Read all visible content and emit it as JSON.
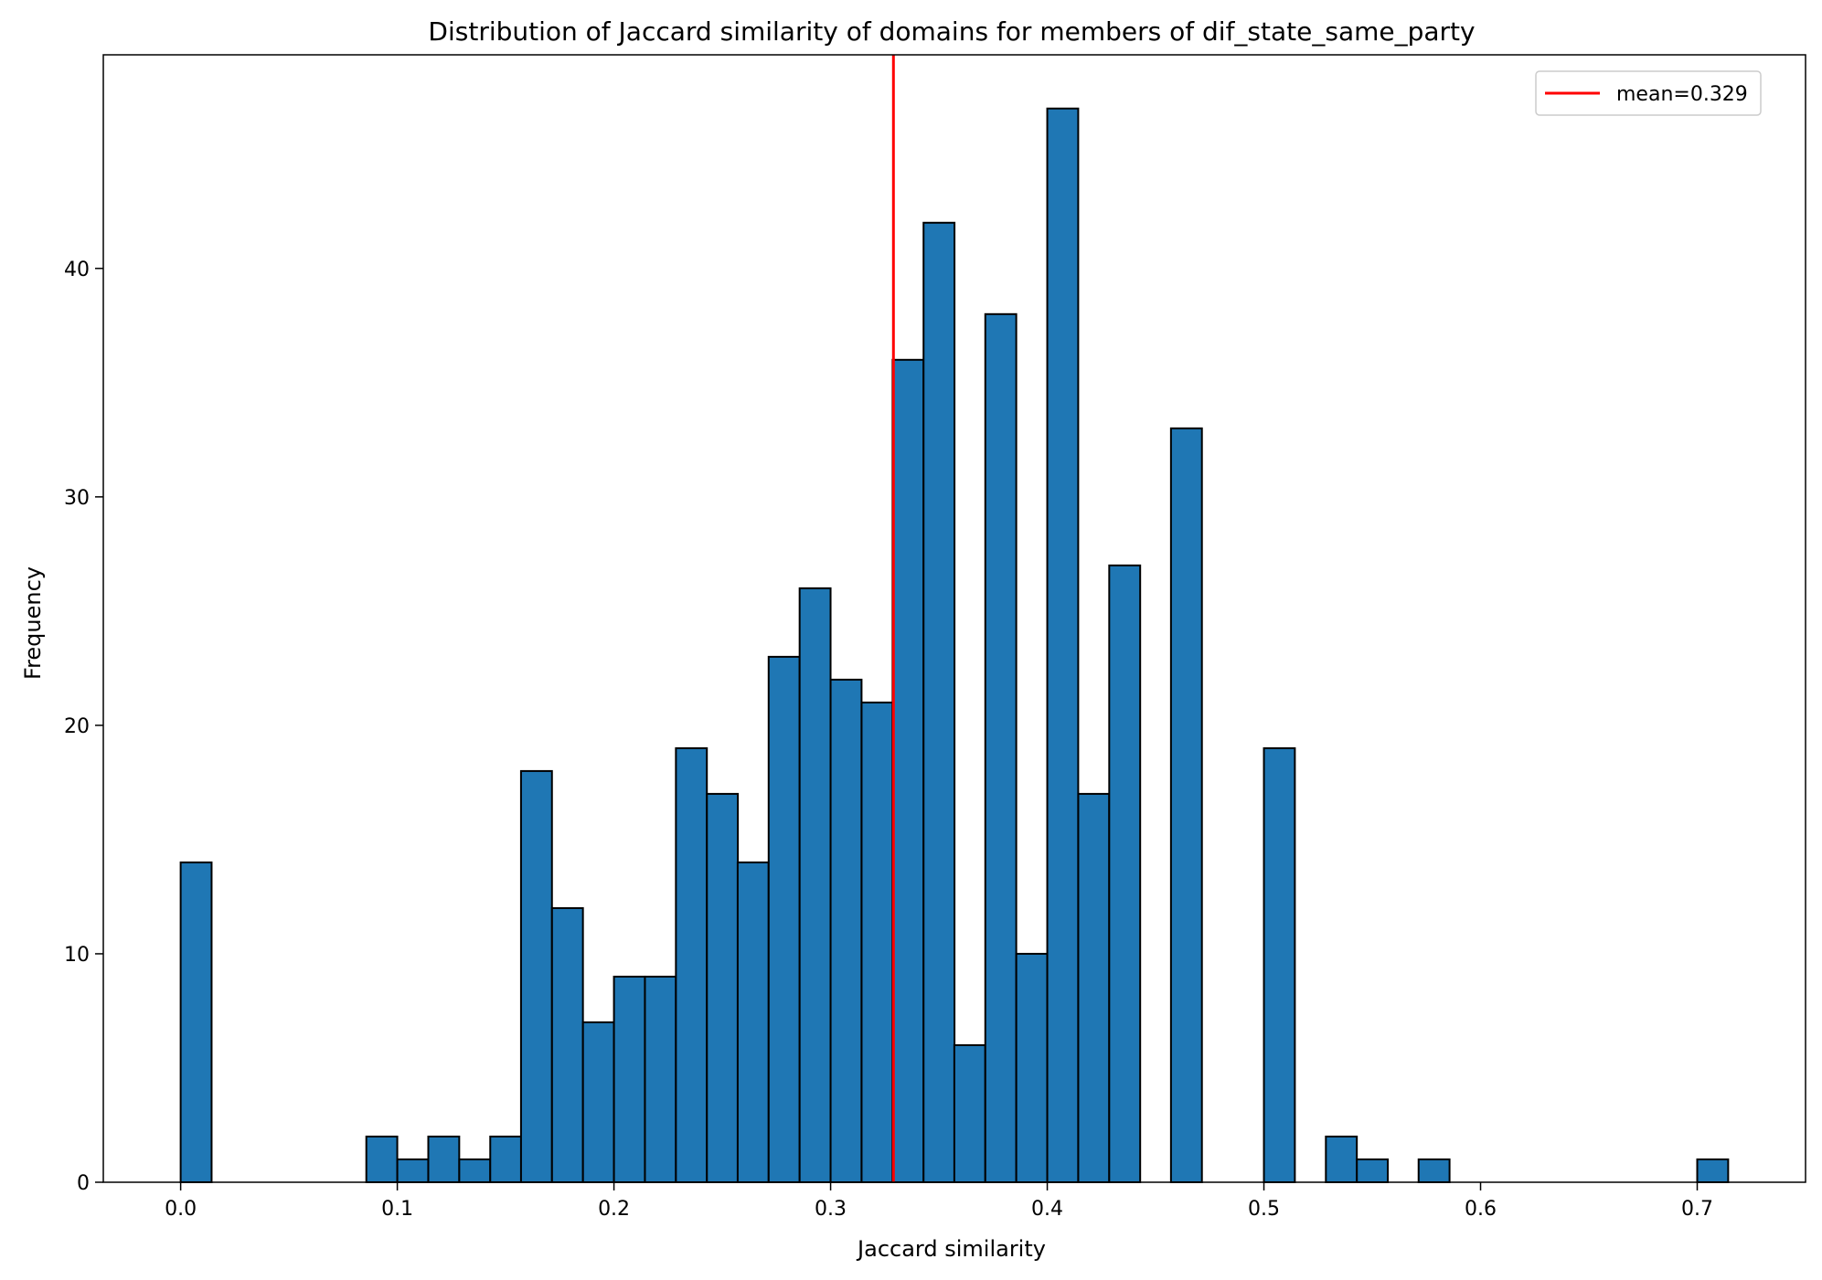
{
  "chart_data": {
    "type": "bar",
    "title": "Distribution of Jaccard similarity of domains for members of dif_state_same_party",
    "xlabel": "Jaccard similarity",
    "ylabel": "Frequency",
    "xlim": [
      -0.0357,
      0.75
    ],
    "ylim": [
      0,
      49.35
    ],
    "bin_width": 0.014286,
    "bins": [
      {
        "x_start": 0.0,
        "count": 14
      },
      {
        "x_start": 0.0857,
        "count": 2
      },
      {
        "x_start": 0.1,
        "count": 1
      },
      {
        "x_start": 0.1143,
        "count": 2
      },
      {
        "x_start": 0.1286,
        "count": 1
      },
      {
        "x_start": 0.1429,
        "count": 2
      },
      {
        "x_start": 0.1571,
        "count": 18
      },
      {
        "x_start": 0.1714,
        "count": 12
      },
      {
        "x_start": 0.1857,
        "count": 7
      },
      {
        "x_start": 0.2,
        "count": 9
      },
      {
        "x_start": 0.2143,
        "count": 9
      },
      {
        "x_start": 0.2286,
        "count": 19
      },
      {
        "x_start": 0.2429,
        "count": 17
      },
      {
        "x_start": 0.2571,
        "count": 14
      },
      {
        "x_start": 0.2714,
        "count": 23
      },
      {
        "x_start": 0.2857,
        "count": 26
      },
      {
        "x_start": 0.3,
        "count": 22
      },
      {
        "x_start": 0.3143,
        "count": 21
      },
      {
        "x_start": 0.3286,
        "count": 36
      },
      {
        "x_start": 0.3429,
        "count": 42
      },
      {
        "x_start": 0.3571,
        "count": 6
      },
      {
        "x_start": 0.3714,
        "count": 38
      },
      {
        "x_start": 0.3857,
        "count": 10
      },
      {
        "x_start": 0.4,
        "count": 47
      },
      {
        "x_start": 0.4143,
        "count": 17
      },
      {
        "x_start": 0.4286,
        "count": 27
      },
      {
        "x_start": 0.4571,
        "count": 33
      },
      {
        "x_start": 0.5,
        "count": 19
      },
      {
        "x_start": 0.5286,
        "count": 2
      },
      {
        "x_start": 0.5429,
        "count": 1
      },
      {
        "x_start": 0.5714,
        "count": 1
      },
      {
        "x_start": 0.7,
        "count": 1
      }
    ],
    "x_ticks": [
      "0.0",
      "0.1",
      "0.2",
      "0.3",
      "0.4",
      "0.5",
      "0.6",
      "0.7"
    ],
    "x_tick_values": [
      0.0,
      0.1,
      0.2,
      0.3,
      0.4,
      0.5,
      0.6,
      0.7
    ],
    "y_ticks": [
      "0",
      "10",
      "20",
      "30",
      "40"
    ],
    "y_tick_values": [
      0,
      10,
      20,
      30,
      40
    ],
    "mean_line": {
      "value": 0.329,
      "label": "mean=0.329",
      "color": "#ff0000"
    },
    "legend": {
      "position": "top-right",
      "entries": [
        "mean=0.329"
      ]
    },
    "bar_color": "#1f77b4",
    "bar_edge_color": "#000000",
    "grid": false
  }
}
